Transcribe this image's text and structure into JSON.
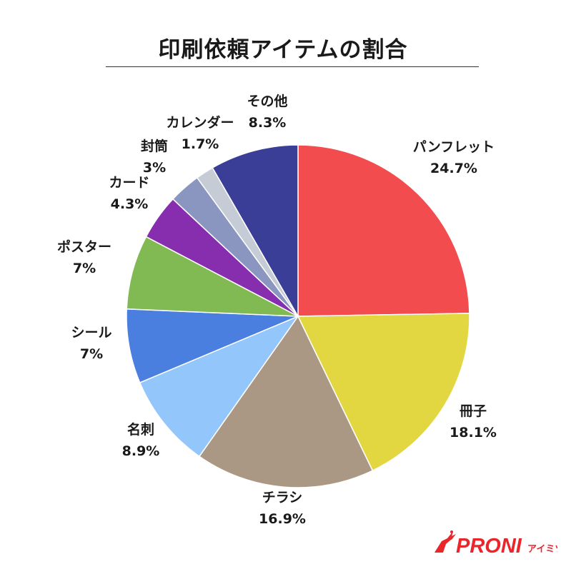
{
  "chart_data": {
    "type": "pie",
    "title": "印刷依頼アイテムの割合",
    "slices": [
      {
        "name": "パンフレット",
        "label": "24.7%",
        "value": 24.7,
        "color": "#f34c4f"
      },
      {
        "name": "冊子",
        "label": "18.1%",
        "value": 18.1,
        "color": "#e3d741"
      },
      {
        "name": "チラシ",
        "label": "16.9%",
        "value": 16.9,
        "color": "#ab9884"
      },
      {
        "name": "名刺",
        "label": "8.9%",
        "value": 8.9,
        "color": "#93c6fb"
      },
      {
        "name": "シール",
        "label": "7%",
        "value": 7.0,
        "color": "#4a7edf"
      },
      {
        "name": "ポスター",
        "label": "7%",
        "value": 7.0,
        "color": "#81b952"
      },
      {
        "name": "カード",
        "label": "4.3%",
        "value": 4.3,
        "color": "#862eae"
      },
      {
        "name": "封筒",
        "label": "3%",
        "value": 3.0,
        "color": "#8b96c0"
      },
      {
        "name": "カレンダー",
        "label": "1.7%",
        "value": 1.7,
        "color": "#c6ccd6"
      },
      {
        "name": "その他",
        "label": "8.3%",
        "value": 8.3,
        "color": "#3a3e96"
      }
    ],
    "start": "12 o'clock",
    "direction": "clockwise",
    "legend": "none"
  },
  "logo": {
    "brand": "PRONI",
    "suffix": "アイミツ",
    "color": "#e8262c"
  }
}
